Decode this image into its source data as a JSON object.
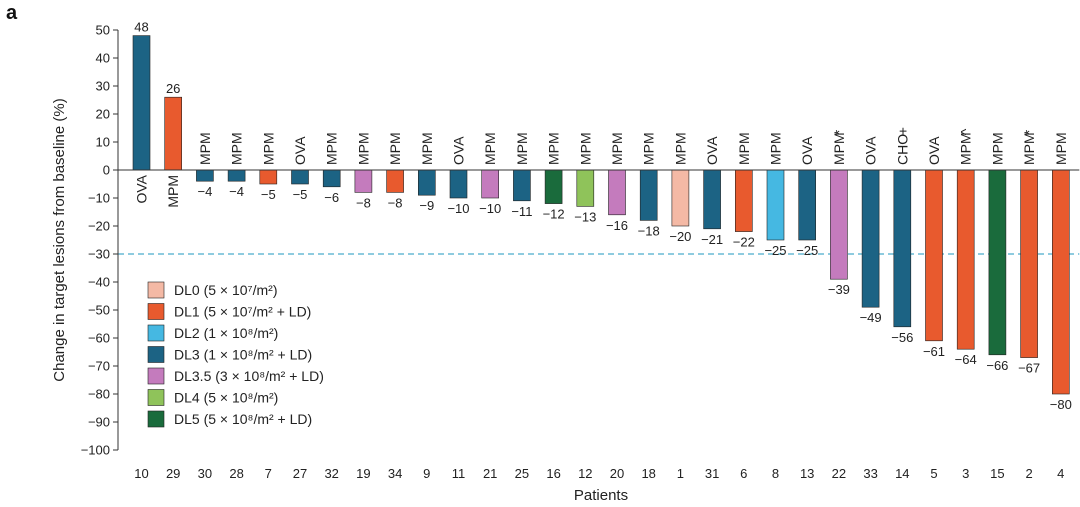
{
  "panel_label": "a",
  "colors": {
    "DL0": "#f4b9a5",
    "DL1": "#e85a2e",
    "DL2": "#45b8e2",
    "DL3": "#1c6384",
    "DL3.5": "#c47bbd",
    "DL4": "#8fc35a",
    "DL5": "#1a6b3c",
    "threshold_line": "#4aaccc",
    "axis": "#333333",
    "bar_stroke": "#222222"
  },
  "chart_data": {
    "type": "bar",
    "title": "",
    "xlabel": "Patients",
    "ylabel": "Change in target lesions from baseline (%)",
    "ylim": [
      -100,
      50
    ],
    "yticks": [
      50,
      40,
      30,
      20,
      10,
      0,
      -10,
      -20,
      -30,
      -40,
      -50,
      -60,
      -70,
      -80,
      -90,
      -100
    ],
    "ytick_labels": [
      "50",
      "40",
      "30",
      "20",
      "10",
      "0",
      "−10",
      "−20",
      "−30",
      "−40",
      "−50",
      "−60",
      "−70",
      "−80",
      "−90",
      "−100"
    ],
    "threshold": -30,
    "grid": false,
    "legend_position": "bottom-left",
    "legend": [
      {
        "key": "DL0",
        "label": "DL0 (5 × 10⁷/m²)"
      },
      {
        "key": "DL1",
        "label": "DL1 (5 × 10⁷/m² + LD)"
      },
      {
        "key": "DL2",
        "label": "DL2 (1 × 10⁸/m²)"
      },
      {
        "key": "DL3",
        "label": "DL3 (1 × 10⁸/m² + LD)"
      },
      {
        "key": "DL3.5",
        "label": "DL3.5 (3 × 10⁸/m² + LD)"
      },
      {
        "key": "DL4",
        "label": "DL4 (5 × 10⁸/m²)"
      },
      {
        "key": "DL5",
        "label": "DL5 (5 × 10⁸/m² + LD)"
      }
    ],
    "patients": [
      {
        "id": "10",
        "value": 48,
        "label": "48",
        "group": "DL3",
        "tumor": "OVA",
        "marker": ""
      },
      {
        "id": "29",
        "value": 26,
        "label": "26",
        "group": "DL1",
        "tumor": "MPM",
        "marker": ""
      },
      {
        "id": "30",
        "value": -4,
        "label": "−4",
        "group": "DL3",
        "tumor": "MPM",
        "marker": ""
      },
      {
        "id": "28",
        "value": -4,
        "label": "−4",
        "group": "DL3",
        "tumor": "MPM",
        "marker": ""
      },
      {
        "id": "7",
        "value": -5,
        "label": "−5",
        "group": "DL1",
        "tumor": "MPM",
        "marker": ""
      },
      {
        "id": "27",
        "value": -5,
        "label": "−5",
        "group": "DL3",
        "tumor": "OVA",
        "marker": ""
      },
      {
        "id": "32",
        "value": -6,
        "label": "−6",
        "group": "DL3",
        "tumor": "MPM",
        "marker": ""
      },
      {
        "id": "19",
        "value": -8,
        "label": "−8",
        "group": "DL3.5",
        "tumor": "MPM",
        "marker": ""
      },
      {
        "id": "34",
        "value": -8,
        "label": "−8",
        "group": "DL1",
        "tumor": "MPM",
        "marker": ""
      },
      {
        "id": "9",
        "value": -9,
        "label": "−9",
        "group": "DL3",
        "tumor": "MPM",
        "marker": ""
      },
      {
        "id": "11",
        "value": -10,
        "label": "−10",
        "group": "DL3",
        "tumor": "OVA",
        "marker": ""
      },
      {
        "id": "21",
        "value": -10,
        "label": "−10",
        "group": "DL3.5",
        "tumor": "MPM",
        "marker": ""
      },
      {
        "id": "25",
        "value": -11,
        "label": "−11",
        "group": "DL3",
        "tumor": "MPM",
        "marker": ""
      },
      {
        "id": "16",
        "value": -12,
        "label": "−12",
        "group": "DL5",
        "tumor": "MPM",
        "marker": ""
      },
      {
        "id": "12",
        "value": -13,
        "label": "−13",
        "group": "DL4",
        "tumor": "MPM",
        "marker": ""
      },
      {
        "id": "20",
        "value": -16,
        "label": "−16",
        "group": "DL3.5",
        "tumor": "MPM",
        "marker": ""
      },
      {
        "id": "18",
        "value": -18,
        "label": "−18",
        "group": "DL3",
        "tumor": "MPM",
        "marker": ""
      },
      {
        "id": "1",
        "value": -20,
        "label": "−20",
        "group": "DL0",
        "tumor": "MPM",
        "marker": ""
      },
      {
        "id": "31",
        "value": -21,
        "label": "−21",
        "group": "DL3",
        "tumor": "OVA",
        "marker": ""
      },
      {
        "id": "6",
        "value": -22,
        "label": "−22",
        "group": "DL1",
        "tumor": "MPM",
        "marker": ""
      },
      {
        "id": "8",
        "value": -25,
        "label": "−25",
        "group": "DL2",
        "tumor": "MPM",
        "marker": ""
      },
      {
        "id": "13",
        "value": -25,
        "label": "−25",
        "group": "DL3",
        "tumor": "OVA",
        "marker": ""
      },
      {
        "id": "22",
        "value": -39,
        "label": "−39",
        "group": "DL3.5",
        "tumor": "MPM",
        "marker": "*"
      },
      {
        "id": "33",
        "value": -49,
        "label": "−49",
        "group": "DL3",
        "tumor": "OVA",
        "marker": ""
      },
      {
        "id": "14",
        "value": -56,
        "label": "−56",
        "group": "DL3",
        "tumor": "CHO",
        "marker": "+"
      },
      {
        "id": "5",
        "value": -61,
        "label": "−61",
        "group": "DL1",
        "tumor": "OVA",
        "marker": ""
      },
      {
        "id": "3",
        "value": -64,
        "label": "−64",
        "group": "DL1",
        "tumor": "MPM",
        "marker": "^"
      },
      {
        "id": "15",
        "value": -66,
        "label": "−66",
        "group": "DL5",
        "tumor": "MPM",
        "marker": ""
      },
      {
        "id": "2",
        "value": -67,
        "label": "−67",
        "group": "DL1",
        "tumor": "MPM",
        "marker": "*"
      },
      {
        "id": "4",
        "value": -80,
        "label": "−80",
        "group": "DL1",
        "tumor": "MPM",
        "marker": ""
      }
    ]
  }
}
